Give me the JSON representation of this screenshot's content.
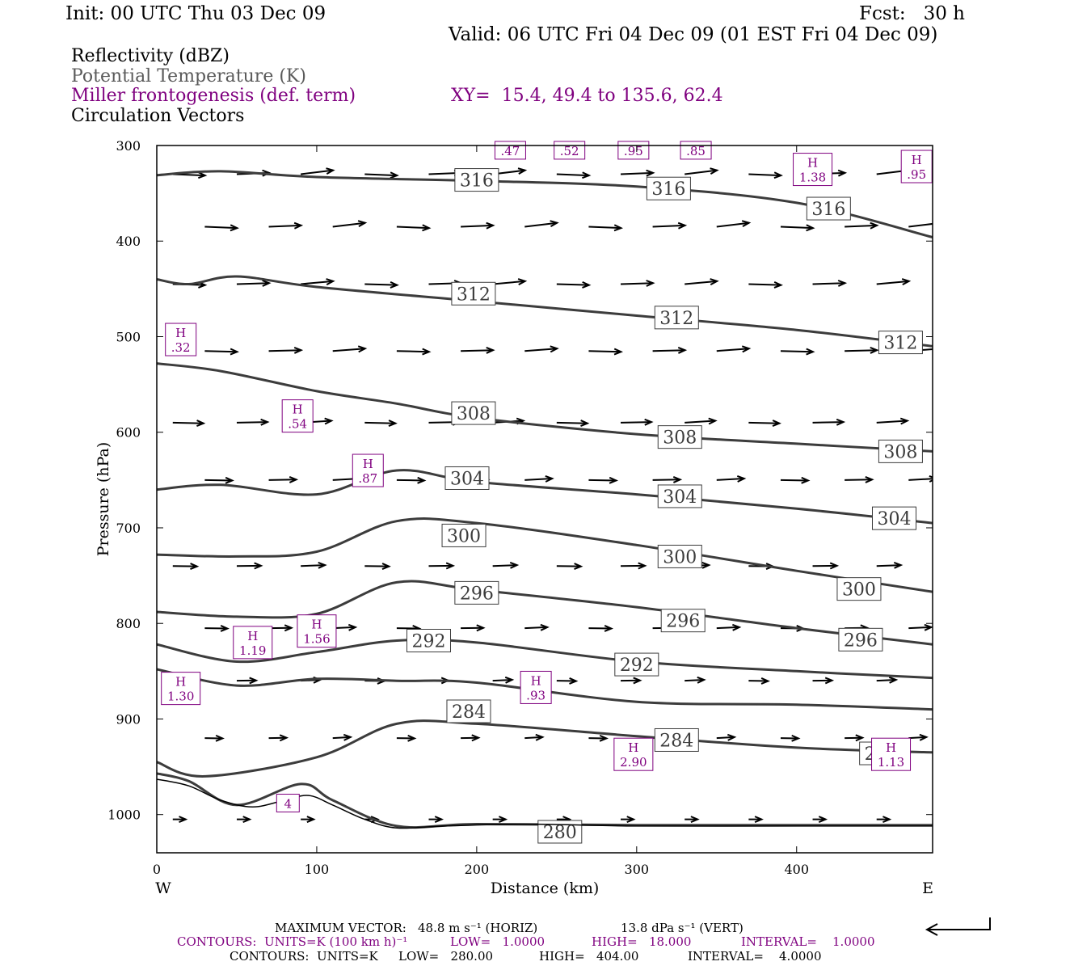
{
  "header": {
    "init": "Init: 00 UTC Thu 03 Dec 09",
    "fcst": "Fcst:   30 h",
    "valid": "Valid: 06 UTC Fri 04 Dec 09 (01 EST Fri 04 Dec 09)",
    "field1": "Reflectivity (dBZ)",
    "field2": "Potential Temperature (K)",
    "field3": "Miller frontogenesis (def. term)",
    "xy": "XY=  15.4, 49.4 to 135.6, 62.4",
    "field4": "Circulation Vectors"
  },
  "footer": {
    "max_vector_label": "MAXIMUM VECTOR:",
    "max_vector_horiz": "48.8 m s⁻¹ (HORIZ)",
    "max_vector_vert": "13.8 dPa s⁻¹ (VERT)",
    "contours1_units": "CONTOURS:  UNITS=K (100 km h)⁻¹",
    "contours1_low": "LOW=   1.0000",
    "contours1_high": "HIGH=   18.000",
    "contours1_interval": "INTERVAL=    1.0000",
    "contours2_units": "CONTOURS:  UNITS=K",
    "contours2_low": "LOW=   280.00",
    "contours2_high": "HIGH=   404.00",
    "contours2_interval": "INTERVAL=    4.0000"
  },
  "colors": {
    "theta": "#3c3c3c",
    "frontogenesis": "#7f007f",
    "vectors": "#000000",
    "terrain": "#000000"
  },
  "chart_data": {
    "type": "line",
    "xlabel": "Distance (km)",
    "ylabel": "Pressure (hPa)",
    "xlim": [
      0,
      485
    ],
    "ylim": [
      1040,
      300
    ],
    "x_ticks": [
      "0",
      "100",
      "200",
      "300",
      "400"
    ],
    "x_tick_values": [
      0,
      100,
      200,
      300,
      400
    ],
    "y_ticks": [
      "300",
      "400",
      "500",
      "600",
      "700",
      "800",
      "900",
      "1000"
    ],
    "y_tick_values": [
      300,
      400,
      500,
      600,
      700,
      800,
      900,
      1000
    ],
    "x_end_labels": {
      "left": "W",
      "right": "E"
    },
    "grid": false,
    "theta_contours": [
      {
        "value": 316,
        "x": [
          0,
          40,
          100,
          200,
          300,
          400,
          485
        ],
        "p": [
          331,
          327,
          333,
          337,
          343,
          360,
          396
        ],
        "labels": [
          {
            "text": "316",
            "x": 200,
            "p": 336
          },
          {
            "text": "316",
            "x": 320,
            "p": 345
          },
          {
            "text": "316",
            "x": 420,
            "p": 366
          }
        ]
      },
      {
        "value": 312,
        "x": [
          0,
          20,
          50,
          100,
          200,
          300,
          400,
          485
        ],
        "p": [
          440,
          445,
          437,
          448,
          463,
          478,
          493,
          510
        ],
        "labels": [
          {
            "text": "312",
            "x": 198,
            "p": 455
          },
          {
            "text": "312",
            "x": 325,
            "p": 480
          },
          {
            "text": "312",
            "x": 465,
            "p": 506
          }
        ]
      },
      {
        "value": 308,
        "x": [
          0,
          40,
          100,
          150,
          200,
          300,
          400,
          485
        ],
        "p": [
          528,
          536,
          557,
          570,
          585,
          602,
          612,
          620
        ],
        "labels": [
          {
            "text": "308",
            "x": 198,
            "p": 580
          },
          {
            "text": "308",
            "x": 327,
            "p": 605
          },
          {
            "text": "308",
            "x": 465,
            "p": 620
          }
        ]
      },
      {
        "value": 304,
        "x": [
          0,
          40,
          100,
          150,
          200,
          300,
          400,
          485
        ],
        "p": [
          660,
          655,
          665,
          640,
          652,
          665,
          680,
          695
        ],
        "labels": [
          {
            "text": "304",
            "x": 194,
            "p": 648
          },
          {
            "text": "304",
            "x": 327,
            "p": 667
          },
          {
            "text": "304",
            "x": 461,
            "p": 690
          }
        ]
      },
      {
        "value": 300,
        "x": [
          0,
          50,
          100,
          150,
          200,
          300,
          400,
          485
        ],
        "p": [
          728,
          730,
          725,
          693,
          695,
          718,
          745,
          767
        ],
        "labels": [
          {
            "text": "300",
            "x": 192,
            "p": 708
          },
          {
            "text": "300",
            "x": 327,
            "p": 730
          },
          {
            "text": "300",
            "x": 439,
            "p": 764
          }
        ]
      },
      {
        "value": 296,
        "x": [
          0,
          50,
          100,
          150,
          200,
          300,
          400,
          485
        ],
        "p": [
          788,
          793,
          790,
          757,
          765,
          783,
          805,
          822
        ],
        "labels": [
          {
            "text": "296",
            "x": 200,
            "p": 768
          },
          {
            "text": "296",
            "x": 329,
            "p": 797
          },
          {
            "text": "296",
            "x": 440,
            "p": 817
          }
        ]
      },
      {
        "value": 292,
        "x": [
          0,
          50,
          100,
          150,
          200,
          300,
          400,
          485
        ],
        "p": [
          822,
          840,
          830,
          818,
          820,
          840,
          850,
          857
        ],
        "labels": [
          {
            "text": "292",
            "x": 170,
            "p": 818
          },
          {
            "text": "292",
            "x": 300,
            "p": 843
          }
        ]
      },
      {
        "value": 288,
        "x": [
          0,
          50,
          100,
          150,
          200,
          300,
          400,
          485
        ],
        "p": [
          848,
          865,
          858,
          860,
          862,
          882,
          885,
          890
        ],
        "labels": []
      },
      {
        "value": 284,
        "x": [
          0,
          30,
          100,
          150,
          200,
          300,
          400,
          485
        ],
        "p": [
          945,
          960,
          940,
          905,
          905,
          918,
          930,
          935
        ],
        "labels": [
          {
            "text": "284",
            "x": 195,
            "p": 892
          },
          {
            "text": "284",
            "x": 325,
            "p": 922
          },
          {
            "text": "284",
            "x": 453,
            "p": 936
          }
        ]
      },
      {
        "value": 280,
        "x": [
          0,
          20,
          50,
          90,
          110,
          150,
          200,
          300,
          485
        ],
        "p": [
          957,
          965,
          990,
          968,
          985,
          1012,
          1010,
          1011,
          1011
        ],
        "labels": [
          {
            "text": "280",
            "x": 252,
            "p": 1018
          }
        ]
      }
    ],
    "terrain": {
      "x": [
        0,
        20,
        40,
        60,
        80,
        95,
        110,
        130,
        150,
        180,
        230,
        300,
        400,
        485
      ],
      "p": [
        963,
        970,
        985,
        992,
        985,
        980,
        990,
        1005,
        1014,
        1012,
        1010,
        1012,
        1012,
        1012
      ]
    },
    "frontogenesis_maxima": [
      {
        "label": "H",
        "value": ".32",
        "x": 15,
        "p": 503
      },
      {
        "label": "H",
        "value": ".54",
        "x": 88,
        "p": 583
      },
      {
        "label": "H",
        "value": ".87",
        "x": 132,
        "p": 640
      },
      {
        "label": "H",
        "value": "1.19",
        "x": 60,
        "p": 820
      },
      {
        "label": "H",
        "value": "1.56",
        "x": 100,
        "p": 808
      },
      {
        "label": "H",
        "value": "1.30",
        "x": 15,
        "p": 868
      },
      {
        "label": "H",
        "value": ".93",
        "x": 237,
        "p": 867
      },
      {
        "label": "H",
        "value": "2.90",
        "x": 298,
        "p": 937
      },
      {
        "label": "H",
        "value": "1.13",
        "x": 459,
        "p": 937
      },
      {
        "label": "H",
        "value": "1.38",
        "x": 410,
        "p": 325
      },
      {
        "label": "H",
        "value": ".95",
        "x": 475,
        "p": 322
      },
      {
        "label": "",
        "value": ".47",
        "x": 221,
        "p": 305
      },
      {
        "label": "",
        "value": ".52",
        "x": 258,
        "p": 305
      },
      {
        "label": "",
        "value": ".95",
        "x": 298,
        "p": 305
      },
      {
        "label": "",
        "value": ".85",
        "x": 337,
        "p": 305
      },
      {
        "label": "",
        "value": "4",
        "x": 82,
        "p": 988
      }
    ],
    "vector_rows": [
      {
        "p": 330,
        "u": 1.0,
        "w": 0.08
      },
      {
        "p": 385,
        "u": 1.0,
        "w": 0.08
      },
      {
        "p": 445,
        "u": 1.0,
        "w": 0.06
      },
      {
        "p": 515,
        "u": 1.0,
        "w": 0.05
      },
      {
        "p": 590,
        "u": 0.95,
        "w": 0.04
      },
      {
        "p": 650,
        "u": 0.85,
        "w": 0.03
      },
      {
        "p": 740,
        "u": 0.75,
        "w": 0.02
      },
      {
        "p": 805,
        "u": 0.7,
        "w": 0.02
      },
      {
        "p": 860,
        "u": 0.6,
        "w": 0.02
      },
      {
        "p": 920,
        "u": 0.55,
        "w": 0.02
      },
      {
        "p": 1005,
        "u": 0.4,
        "w": 0.0
      }
    ]
  }
}
